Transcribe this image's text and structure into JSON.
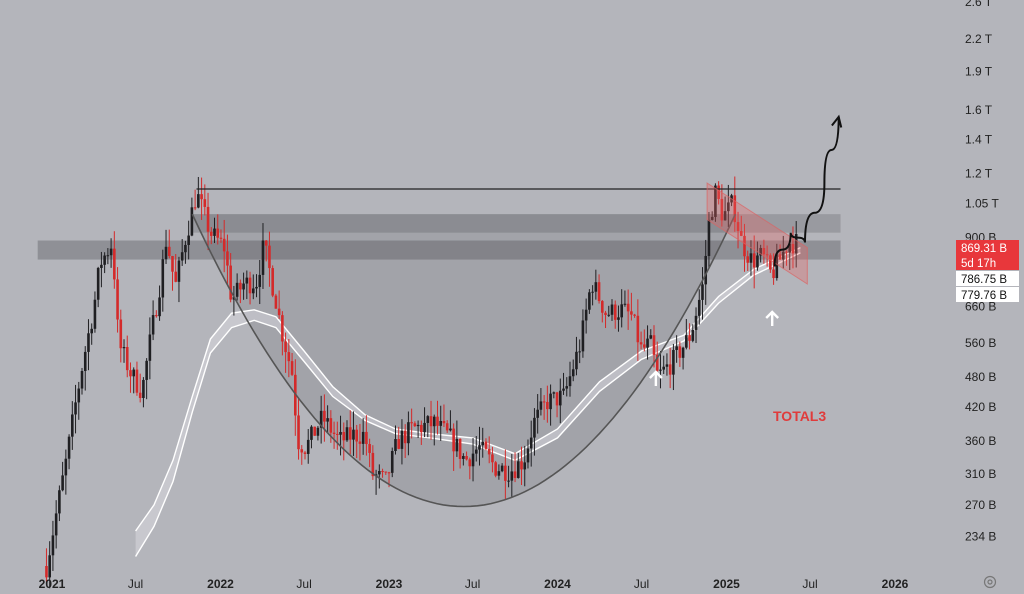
{
  "chart_data": {
    "type": "candlestick",
    "symbol": "TOTAL3",
    "y_scale": "log",
    "ylim": [
      205,
      2600
    ],
    "y_tick_labels": [
      "2.6 T",
      "2.2 T",
      "1.9 T",
      "1.6 T",
      "1.4 T",
      "1.2 T",
      "1.05 T",
      "900 B",
      "660 B",
      "560 B",
      "480 B",
      "420 B",
      "360 B",
      "310 B",
      "270 B",
      "234 B"
    ],
    "y_tick_values": [
      2600,
      2200,
      1900,
      1600,
      1400,
      1200,
      1050,
      900,
      660,
      560,
      480,
      420,
      360,
      310,
      270,
      234
    ],
    "x_tick_labels": [
      "2021",
      "Jul",
      "2022",
      "Jul",
      "2023",
      "Jul",
      "2024",
      "Jul",
      "2025",
      "Jul",
      "2026"
    ],
    "x_tick_dates": [
      "2021-01-01",
      "2021-07-01",
      "2022-01-01",
      "2022-07-01",
      "2023-01-01",
      "2023-07-01",
      "2024-01-01",
      "2024-07-01",
      "2025-01-01",
      "2025-07-01",
      "2026-01-01"
    ],
    "x_tick_bold": [
      true,
      false,
      true,
      false,
      true,
      false,
      true,
      false,
      true,
      false,
      true
    ],
    "price_tags": [
      {
        "label": "869.31 B",
        "value": 869.31,
        "bg": "#e8373b",
        "fg": "#ffffff"
      },
      {
        "label": "5d 17h",
        "value": null,
        "bg": "#e8373b",
        "fg": "#ffffff"
      },
      {
        "label": "786.75 B",
        "value": 786.75,
        "bg": "#ffffff",
        "fg": "#111111"
      },
      {
        "label": "779.76 B",
        "value": 779.76,
        "bg": "#ffffff",
        "fg": "#111111"
      }
    ],
    "anchors": [
      [
        "2020-12-20",
        205
      ],
      [
        "2021-02-01",
        330
      ],
      [
        "2021-02-20",
        420
      ],
      [
        "2021-03-10",
        520
      ],
      [
        "2021-04-01",
        650
      ],
      [
        "2021-04-15",
        800
      ],
      [
        "2021-05-12",
        880
      ],
      [
        "2021-05-25",
        560
      ],
      [
        "2021-06-20",
        490
      ],
      [
        "2021-07-15",
        450
      ],
      [
        "2021-08-01",
        560
      ],
      [
        "2021-08-25",
        750
      ],
      [
        "2021-09-06",
        900
      ],
      [
        "2021-09-25",
        720
      ],
      [
        "2021-10-15",
        880
      ],
      [
        "2021-11-10",
        1100
      ],
      [
        "2021-12-10",
        920
      ],
      [
        "2022-01-10",
        860
      ],
      [
        "2022-01-25",
        680
      ],
      [
        "2022-02-20",
        730
      ],
      [
        "2022-03-20",
        740
      ],
      [
        "2022-04-05",
        870
      ],
      [
        "2022-05-01",
        680
      ],
      [
        "2022-05-12",
        600
      ],
      [
        "2022-06-05",
        490
      ],
      [
        "2022-06-18",
        360
      ],
      [
        "2022-07-05",
        350
      ],
      [
        "2022-08-10",
        400
      ],
      [
        "2022-09-15",
        360
      ],
      [
        "2022-10-15",
        370
      ],
      [
        "2022-11-10",
        370
      ],
      [
        "2022-11-25",
        310
      ],
      [
        "2022-12-25",
        300
      ],
      [
        "2023-01-20",
        360
      ],
      [
        "2023-02-20",
        380
      ],
      [
        "2023-04-10",
        390
      ],
      [
        "2023-05-20",
        360
      ],
      [
        "2023-06-15",
        330
      ],
      [
        "2023-07-15",
        350
      ],
      [
        "2023-08-20",
        320
      ],
      [
        "2023-09-20",
        315
      ],
      [
        "2023-10-20",
        330
      ],
      [
        "2023-11-10",
        390
      ],
      [
        "2023-12-10",
        430
      ],
      [
        "2024-01-15",
        440
      ],
      [
        "2024-02-20",
        560
      ],
      [
        "2024-03-15",
        740
      ],
      [
        "2024-04-15",
        640
      ],
      [
        "2024-05-20",
        650
      ],
      [
        "2024-06-10",
        630
      ],
      [
        "2024-07-01",
        540
      ],
      [
        "2024-07-20",
        560
      ],
      [
        "2024-08-05",
        480
      ],
      [
        "2024-09-10",
        520
      ],
      [
        "2024-10-15",
        580
      ],
      [
        "2024-11-10",
        720
      ],
      [
        "2024-11-25",
        980
      ],
      [
        "2024-12-08",
        1100
      ],
      [
        "2024-12-25",
        990
      ],
      [
        "2025-01-15",
        1050
      ],
      [
        "2025-02-03",
        880
      ],
      [
        "2025-02-25",
        810
      ],
      [
        "2025-03-20",
        830
      ],
      [
        "2025-04-08",
        760
      ],
      [
        "2025-04-25",
        810
      ],
      [
        "2025-05-15",
        880
      ],
      [
        "2025-06-05",
        880
      ]
    ],
    "ma_band_upper": [
      [
        "2021-07-01",
        240
      ],
      [
        "2021-08-10",
        270
      ],
      [
        "2021-09-20",
        330
      ],
      [
        "2021-11-01",
        440
      ],
      [
        "2021-12-10",
        570
      ],
      [
        "2022-01-25",
        640
      ],
      [
        "2022-03-15",
        650
      ],
      [
        "2022-05-01",
        630
      ],
      [
        "2022-07-01",
        540
      ],
      [
        "2022-09-01",
        460
      ],
      [
        "2022-11-10",
        405
      ],
      [
        "2023-01-15",
        380
      ],
      [
        "2023-04-01",
        372
      ],
      [
        "2023-07-01",
        365
      ],
      [
        "2023-10-01",
        340
      ],
      [
        "2024-01-01",
        380
      ],
      [
        "2024-04-01",
        470
      ],
      [
        "2024-07-01",
        540
      ],
      [
        "2024-10-01",
        580
      ],
      [
        "2024-12-15",
        690
      ],
      [
        "2025-03-01",
        780
      ],
      [
        "2025-06-10",
        860
      ]
    ],
    "ma_band_lower": [
      [
        "2021-07-01",
        214
      ],
      [
        "2021-08-10",
        245
      ],
      [
        "2021-09-20",
        300
      ],
      [
        "2021-11-01",
        410
      ],
      [
        "2021-12-10",
        535
      ],
      [
        "2022-01-25",
        600
      ],
      [
        "2022-03-15",
        620
      ],
      [
        "2022-05-01",
        600
      ],
      [
        "2022-07-01",
        515
      ],
      [
        "2022-09-01",
        440
      ],
      [
        "2022-11-10",
        395
      ],
      [
        "2023-01-15",
        372
      ],
      [
        "2023-04-01",
        365
      ],
      [
        "2023-07-01",
        355
      ],
      [
        "2023-10-01",
        330
      ],
      [
        "2024-01-01",
        365
      ],
      [
        "2024-04-01",
        450
      ],
      [
        "2024-07-01",
        520
      ],
      [
        "2024-10-01",
        565
      ],
      [
        "2024-12-15",
        670
      ],
      [
        "2025-03-01",
        760
      ],
      [
        "2025-06-10",
        840
      ]
    ],
    "resistance_line": {
      "value": 1120,
      "from": "2021-11-10",
      "to": "2025-09-05"
    },
    "range_zone": {
      "high": 1000,
      "low": 920,
      "from": "2021-11-01",
      "to": "2025-09-05"
    },
    "band_zone": {
      "high": 888,
      "low": 815,
      "from": "2020-12-01",
      "to": "2025-09-05"
    },
    "cup": {
      "from": "2021-11-01",
      "to": "2025-01-20",
      "top": 1000,
      "bottom": 268
    },
    "downtrend_channel": {
      "from": "2024-11-20",
      "to": "2025-06-25"
    },
    "projection": [
      [
        "2025-04-15",
        790
      ],
      [
        "2025-05-20",
        920
      ],
      [
        "2025-06-20",
        880
      ],
      [
        "2025-08-01",
        1150
      ],
      [
        "2025-09-01",
        1550
      ]
    ],
    "arrow_markers": [
      "2024-08-01",
      "2025-04-10"
    ]
  }
}
